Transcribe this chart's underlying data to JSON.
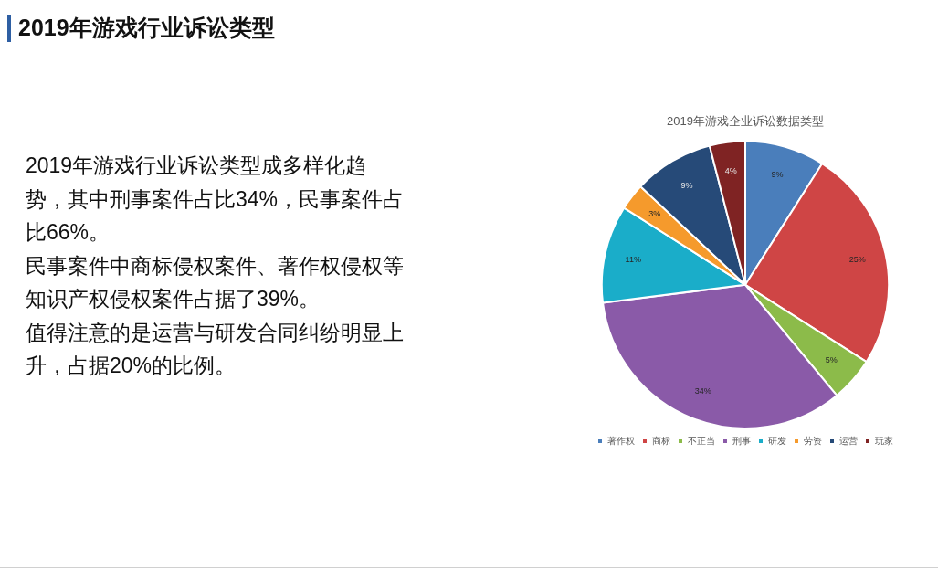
{
  "chart_data": {
    "type": "pie",
    "title": "2019年游戏行业诉讼类型",
    "subtitle": "2019年游戏企业诉讼数据类型",
    "annotations": [
      "2019年游戏行业诉讼类型成多样化趋势，其中刑事案件占比34%，民事案件占比66%。",
      "民事案件中商标侵权案件、著作权侵权等知识产权侵权案件占据了39%。",
      "值得注意的是运营与研发合同纠纷明显上升，占据20%的比例。"
    ],
    "categories": [
      "著作权",
      "商标",
      "不正当",
      "刑事",
      "研发",
      "劳资",
      "运营",
      "玩家"
    ],
    "values": [
      9,
      25,
      5,
      34,
      11,
      3,
      9,
      4
    ],
    "colors": [
      "#4a7ebb",
      "#cf4545",
      "#8cbb4a",
      "#8a5aa8",
      "#1aadc9",
      "#f59a2c",
      "#264a78",
      "#7f2323"
    ],
    "value_labels": [
      "9%",
      "25%",
      "5%",
      "34%",
      "11%",
      "3%",
      "9%",
      "4%"
    ],
    "legend": "bottom"
  }
}
